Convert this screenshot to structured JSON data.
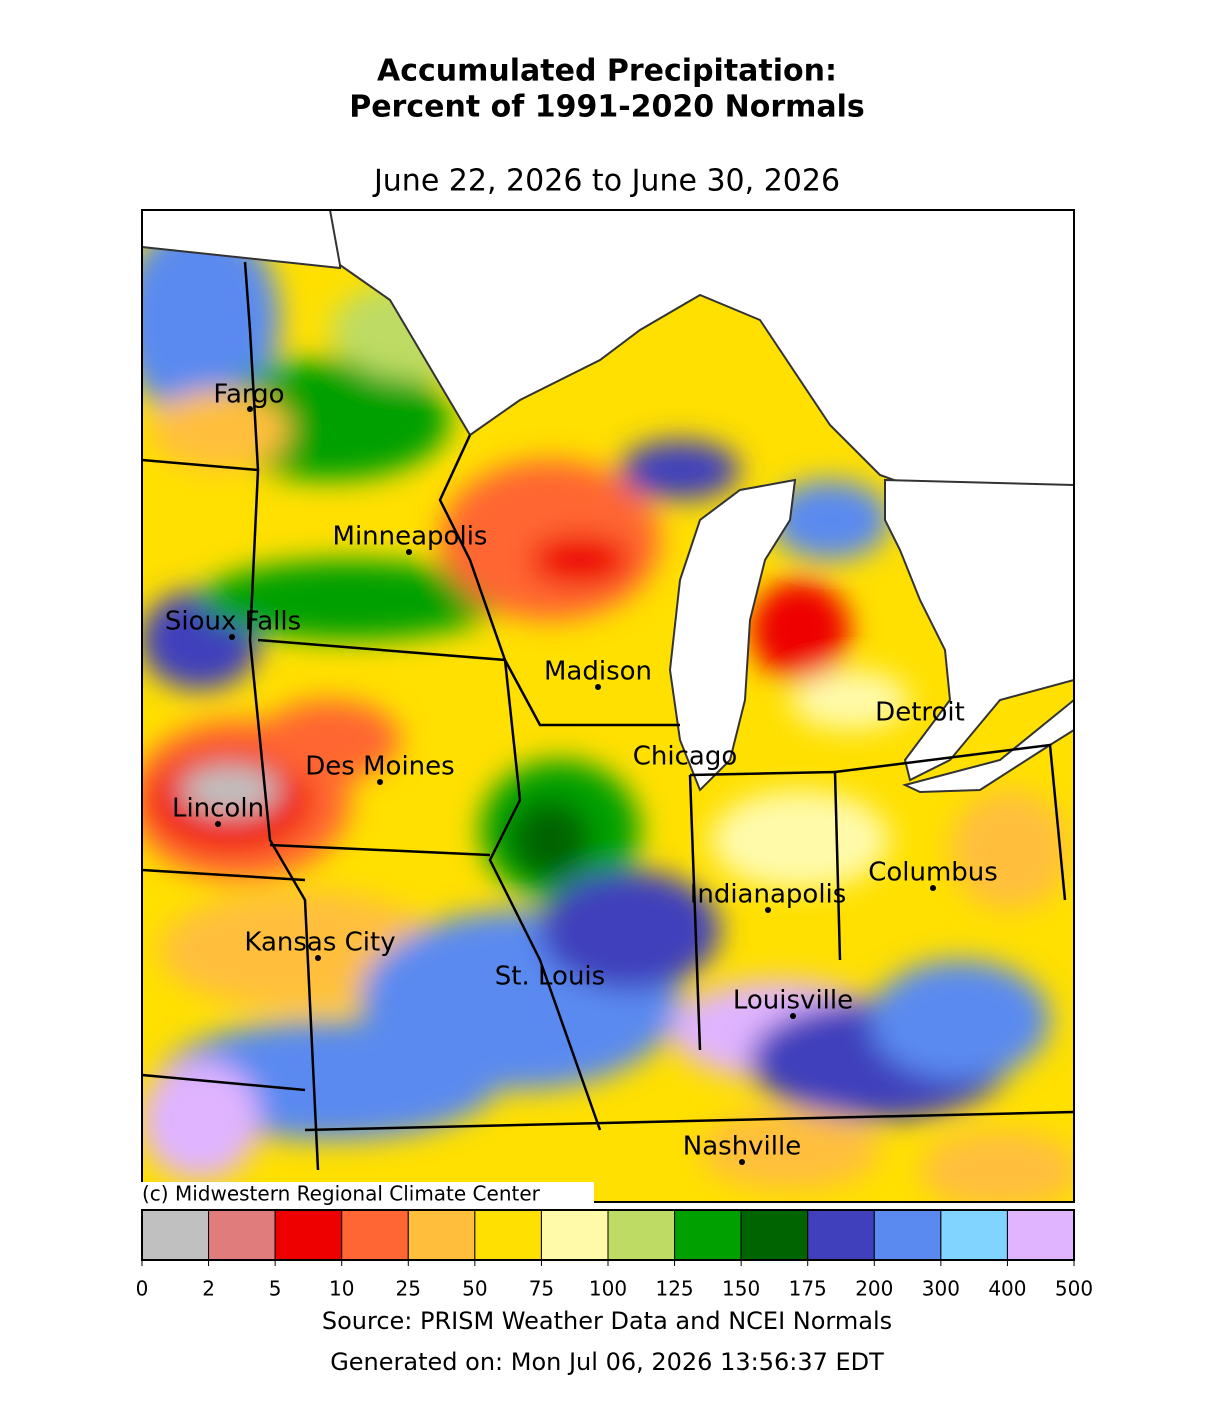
{
  "header": {
    "title_line_1": "Accumulated Precipitation:",
    "title_line_2": "Percent of 1991-2020 Normals",
    "period": "June 22, 2026 to June 30, 2026"
  },
  "map": {
    "copyright": "(c) Midwestern Regional Climate Center",
    "cities": [
      "Fargo",
      "Minneapolis",
      "Sioux Falls",
      "Madison",
      "Des Moines",
      "Chicago",
      "Detroit",
      "Lincoln",
      "Columbus",
      "Indianapolis",
      "Kansas City",
      "St. Louis",
      "Louisville",
      "Nashville"
    ]
  },
  "colorbar": {
    "ticks": [
      0,
      2,
      5,
      10,
      25,
      50,
      75,
      100,
      125,
      150,
      175,
      200,
      300,
      400,
      500
    ],
    "colors": [
      "#c0c0c0",
      "#e07c7c",
      "#ee0000",
      "#ff6633",
      "#ffbf3c",
      "#ffe000",
      "#fffaaa",
      "#bedc64",
      "#00a000",
      "#006400",
      "#4040bc",
      "#5a8af0",
      "#80d4ff",
      "#e0b4ff"
    ]
  },
  "footer": {
    "source": "Source: PRISM Weather Data and NCEI Normals",
    "generated": "Generated on: Mon Jul 06, 2026 13:56:37 EDT"
  }
}
